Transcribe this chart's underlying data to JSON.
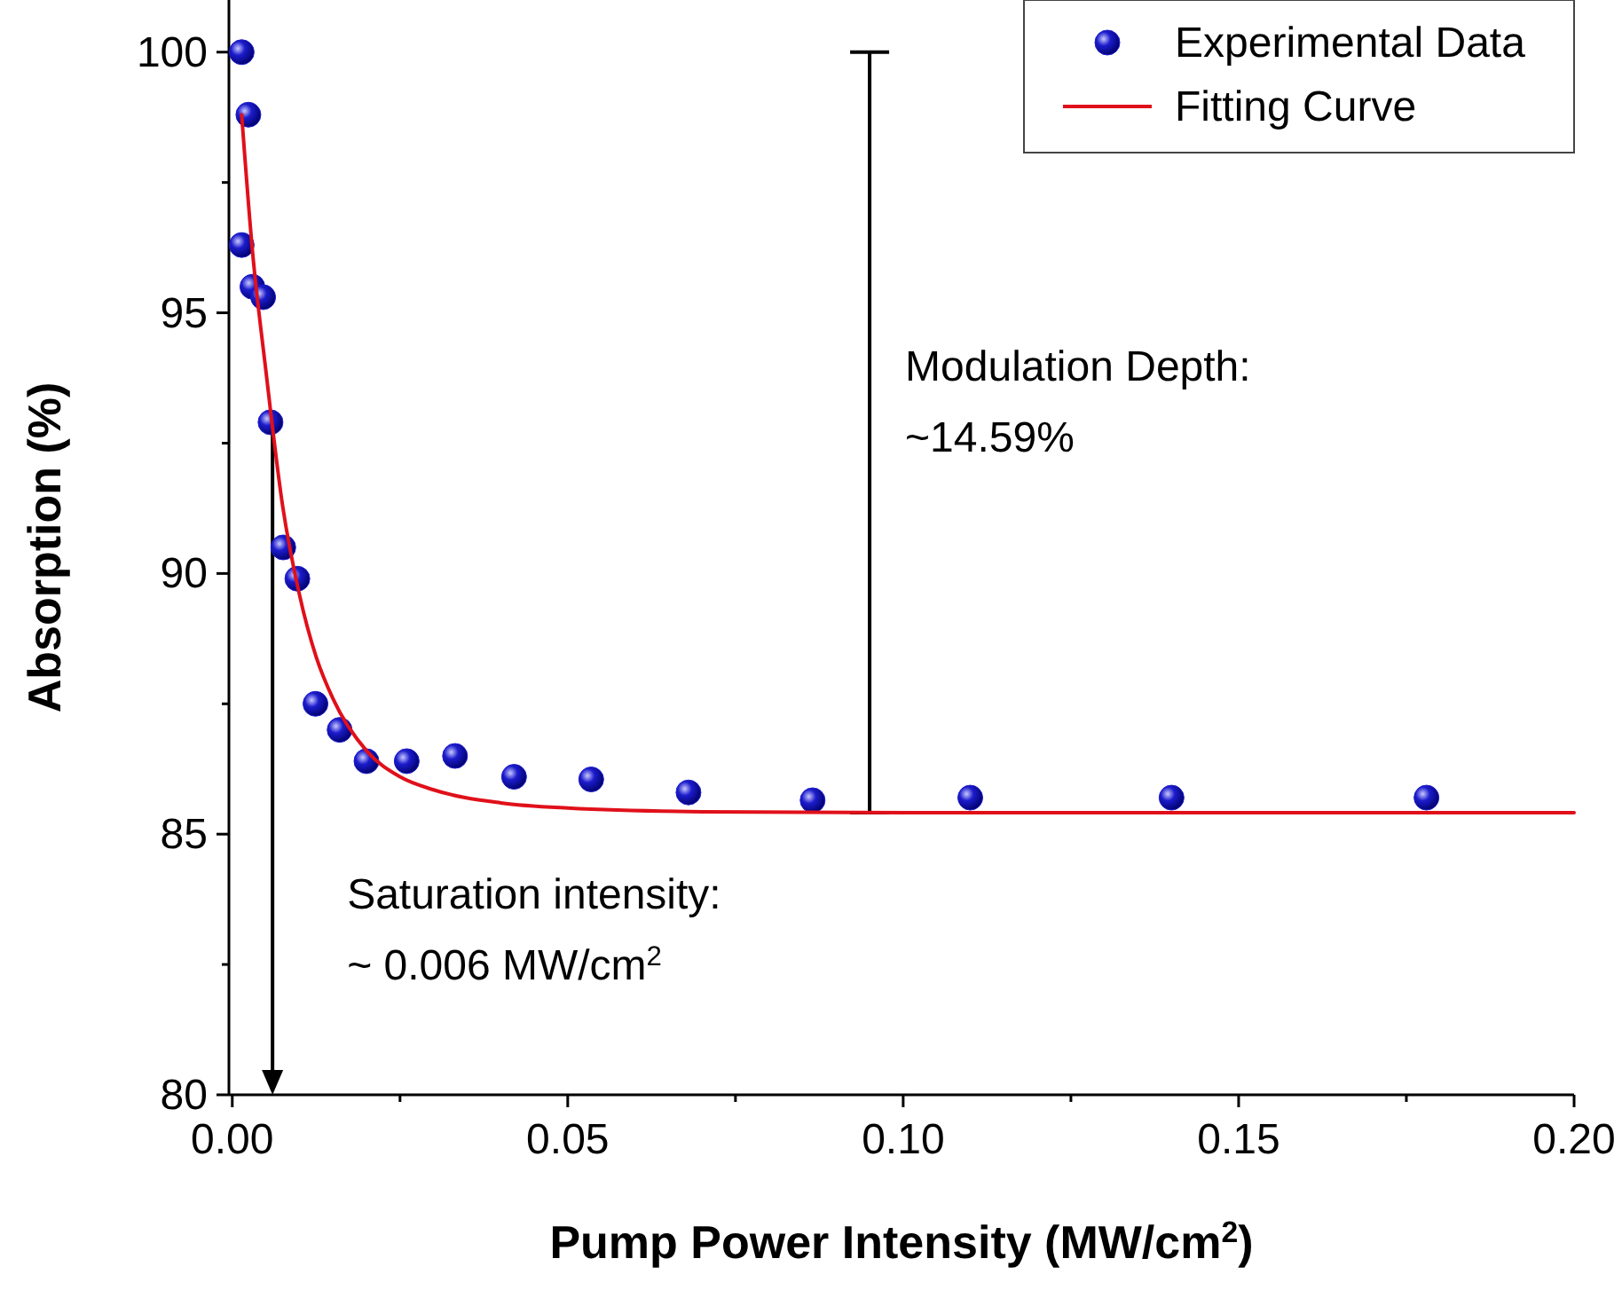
{
  "chart_data": {
    "type": "scatter",
    "xlabel": "Pump Power Intensity (MW/cm$^{2}$)",
    "ylabel": "Absorption (%)",
    "xlim": [
      -0.0005,
      0.2
    ],
    "ylim": [
      80,
      101
    ],
    "xticks": [
      {
        "value": 0,
        "label": "0.00"
      },
      {
        "value": 0.025,
        "label": null
      },
      {
        "value": 0.05,
        "label": "0.05"
      },
      {
        "value": 0.075,
        "label": null
      },
      {
        "value": 0.1,
        "label": "0.10"
      },
      {
        "value": 0.125,
        "label": null
      },
      {
        "value": 0.15,
        "label": "0.15"
      },
      {
        "value": 0.175,
        "label": null
      },
      {
        "value": 0.2,
        "label": "0.20"
      }
    ],
    "yticks": [
      80,
      {
        "value": 82.5,
        "label": null
      },
      85,
      {
        "value": 87.5,
        "label": null
      },
      90,
      {
        "value": 92.5,
        "label": null
      },
      95,
      {
        "value": 97.5,
        "label": null
      },
      100
    ],
    "legend": "top right",
    "grid": false,
    "series": [
      {
        "name": "Experimental Data",
        "type": "scatter",
        "marker": "circle",
        "color": "#1c1ccc",
        "x": [
          0.0014,
          0.0024,
          0.0014,
          0.003,
          0.0046,
          0.0057,
          0.0076,
          0.0097,
          0.0124,
          0.016,
          0.02,
          0.026,
          0.0332,
          0.042,
          0.0535,
          0.068,
          0.0865,
          0.11,
          0.14,
          0.178
        ],
        "values": [
          100,
          98.8,
          96.3,
          95.5,
          95.3,
          92.9,
          90.5,
          89.9,
          87.5,
          87.0,
          86.4,
          86.4,
          86.5,
          86.1,
          86.05,
          85.8,
          85.65,
          85.7,
          85.7,
          85.7
        ]
      },
      {
        "name": "Fitting Curve",
        "type": "line",
        "marker": "none",
        "line_style": "solid",
        "color": "#e0101a",
        "x": [
          0.0014,
          0.003,
          0.005,
          0.0075,
          0.01,
          0.0125,
          0.015,
          0.02,
          0.025,
          0.03,
          0.04,
          0.05,
          0.07,
          0.1,
          0.2
        ],
        "values": [
          98.8,
          96.2,
          93.9,
          91.3,
          89.6,
          88.4,
          87.6,
          86.6,
          86.1,
          85.85,
          85.6,
          85.5,
          85.43,
          85.41,
          85.41
        ]
      }
    ],
    "ref_lines": [
      {
        "axis": "x",
        "value": 0.006,
        "label": "Saturation intensity: ~ 0.006 MW/cm$^{2}$",
        "color": "#000000"
      },
      {
        "axis": "x",
        "value": 0.095,
        "label": "Modulation Depth: ~14.59%",
        "color": "#000000"
      }
    ]
  }
}
